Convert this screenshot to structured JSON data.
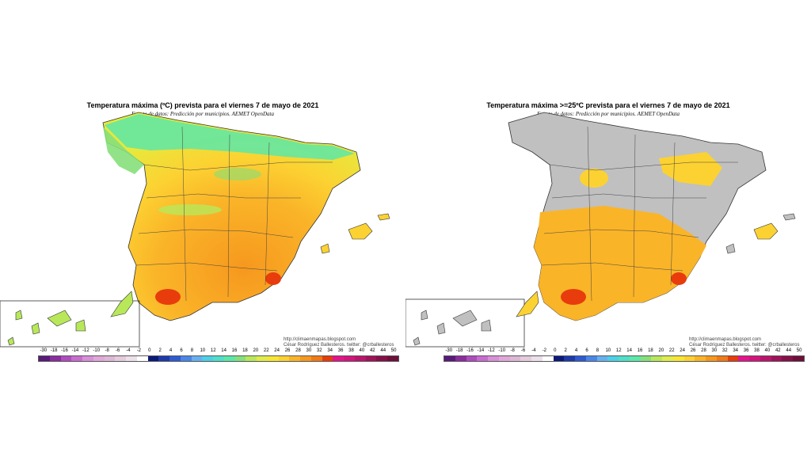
{
  "maps": [
    {
      "title": "Temperatura máxima (ºC) prevista para el viernes 7 de mayo de 2021",
      "subtitle": "Fuente de datos: Predicción por municipios. AEMET OpenData",
      "credits": {
        "blog": "http://climaenmapas.blogspot.com",
        "author": "César Rodríguez Ballesteros. twitter: @crballesteros"
      }
    },
    {
      "title": "Temperatura máxima >=25ºC prevista para el viernes 7 de mayo de 2021",
      "subtitle": "Fuente de datos: Predicción por municipios. AEMET OpenData",
      "credits": {
        "blog": "http://climaenmapas.blogspot.com",
        "author": "César Rodríguez Ballesteros. twitter: @crballesteros"
      }
    }
  ],
  "legend": {
    "ticks": [
      "-30",
      "-18",
      "-16",
      "-14",
      "-12",
      "-10",
      "-8",
      "-6",
      "-4",
      "-2",
      "0",
      "2",
      "4",
      "6",
      "8",
      "10",
      "12",
      "14",
      "16",
      "18",
      "20",
      "22",
      "24",
      "26",
      "28",
      "30",
      "32",
      "34",
      "36",
      "38",
      "40",
      "42",
      "44",
      "50"
    ],
    "colors": [
      "#5a1a7a",
      "#8a2d9e",
      "#b04cc0",
      "#c86dd0",
      "#d890d8",
      "#e0a8d8",
      "#dcb8d6",
      "#e4ccdc",
      "#ece0ea",
      "#ffffff",
      "#0b1a78",
      "#1e3aa8",
      "#2f5ad0",
      "#4a86e8",
      "#66b0f0",
      "#4cd0e8",
      "#4ee0c8",
      "#5ce8a8",
      "#86e07a",
      "#b8e85a",
      "#e0ec4a",
      "#f6e632",
      "#fcd232",
      "#fab428",
      "#f6981e",
      "#f07a14",
      "#e83c0c",
      "#e4148c",
      "#d4147e",
      "#bc146c",
      "#a0125a",
      "#86104a",
      "#6e0e3a"
    ]
  }
}
